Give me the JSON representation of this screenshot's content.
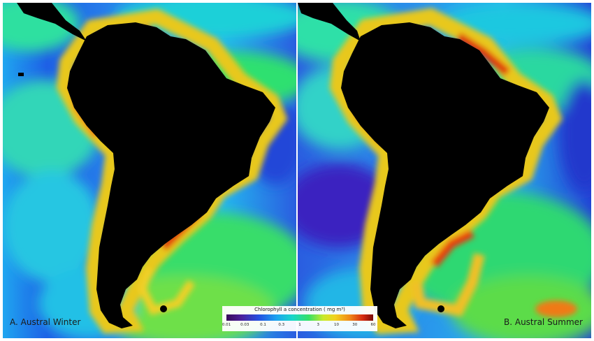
{
  "panels": [
    {
      "label": "A. Austral Winter"
    },
    {
      "label": "B. Austral Summer"
    }
  ],
  "colorbar": {
    "title": "Chlorophyll a concentration   ( mg m³)",
    "ticks": [
      "0.01",
      "0.03",
      "0.1",
      "0.3",
      "1",
      "3",
      "10",
      "30",
      "60"
    ]
  },
  "colors": {
    "land": "#000000",
    "low_chlorophyll": "#2a4de0",
    "mid_chlorophyll": "#1ecfd6",
    "high_chlorophyll": "#2ee05a",
    "coastal_peak": "#e0220e"
  }
}
